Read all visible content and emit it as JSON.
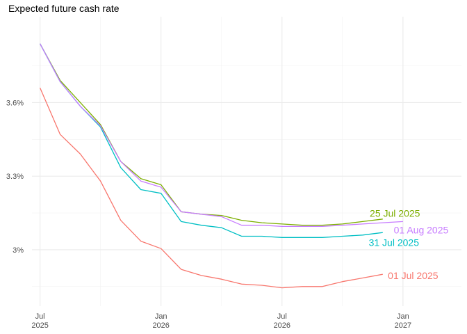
{
  "chart_data": {
    "type": "line",
    "title": "Expected future cash rate",
    "xlabel": "",
    "ylabel": "",
    "x_ticks": [
      {
        "month": 0,
        "line1": "Jul",
        "line2": "2025"
      },
      {
        "month": 6,
        "line1": "Jan",
        "line2": "2026"
      },
      {
        "month": 12,
        "line1": "Jul",
        "line2": "2026"
      },
      {
        "month": 18,
        "line1": "Jan",
        "line2": "2027"
      }
    ],
    "y_ticks": [
      {
        "value": 3.0,
        "label": "3%"
      },
      {
        "value": 3.3,
        "label": "3.3%"
      },
      {
        "value": 3.6,
        "label": "3.6%"
      }
    ],
    "xlim": [
      -0.4,
      20.9
    ],
    "ylim": [
      2.77,
      3.95
    ],
    "grid": true,
    "legend": "direct labels at line ends",
    "series": [
      {
        "name": "01 Jul 2025",
        "color": "#F8766D",
        "x": [
          0,
          1,
          2,
          3,
          4,
          5,
          6,
          7,
          8,
          9,
          10,
          11,
          12,
          13,
          14,
          15,
          16,
          17
        ],
        "values": [
          3.66,
          3.47,
          3.39,
          3.28,
          3.12,
          3.035,
          3.005,
          2.92,
          2.895,
          2.88,
          2.86,
          2.855,
          2.845,
          2.85,
          2.85,
          2.87,
          2.885,
          2.9
        ]
      },
      {
        "name": "25 Jul 2025",
        "color": "#7CAE00",
        "x": [
          0,
          1,
          2,
          3,
          4,
          5,
          6,
          7,
          8,
          9,
          10,
          11,
          12,
          13,
          14,
          15,
          16,
          17
        ],
        "values": [
          3.84,
          3.69,
          3.6,
          3.51,
          3.36,
          3.29,
          3.265,
          3.155,
          3.145,
          3.14,
          3.12,
          3.11,
          3.105,
          3.1,
          3.1,
          3.105,
          3.115,
          3.125
        ]
      },
      {
        "name": "31 Jul 2025",
        "color": "#00BFC4",
        "x": [
          0,
          1,
          2,
          3,
          4,
          5,
          6,
          7,
          8,
          9,
          10,
          11,
          12,
          13,
          14,
          15,
          16,
          17
        ],
        "values": [
          3.84,
          3.685,
          3.585,
          3.5,
          3.335,
          3.245,
          3.23,
          3.115,
          3.1,
          3.09,
          3.055,
          3.055,
          3.05,
          3.05,
          3.05,
          3.055,
          3.06,
          3.07
        ]
      },
      {
        "name": "01 Aug 2025",
        "color": "#C77CFF",
        "x": [
          0,
          1,
          2,
          3,
          4,
          5,
          6,
          7,
          8,
          9,
          10,
          11,
          12,
          13,
          14,
          15,
          16,
          17,
          18
        ],
        "values": [
          3.84,
          3.685,
          3.585,
          3.505,
          3.36,
          3.28,
          3.255,
          3.155,
          3.145,
          3.135,
          3.1,
          3.1,
          3.095,
          3.095,
          3.095,
          3.1,
          3.105,
          3.11,
          3.115
        ]
      }
    ],
    "end_labels": [
      {
        "text": "25 Jul 2025",
        "color": "#7CAE00",
        "x": 17.6,
        "y": 3.148
      },
      {
        "text": "01 Aug 2025",
        "color": "#C77CFF",
        "x": 18.9,
        "y": 3.08
      },
      {
        "text": "31 Jul 2025",
        "color": "#00BFC4",
        "x": 17.55,
        "y": 3.03
      },
      {
        "text": "01 Jul 2025",
        "color": "#F8766D",
        "x": 18.5,
        "y": 2.895
      }
    ]
  }
}
